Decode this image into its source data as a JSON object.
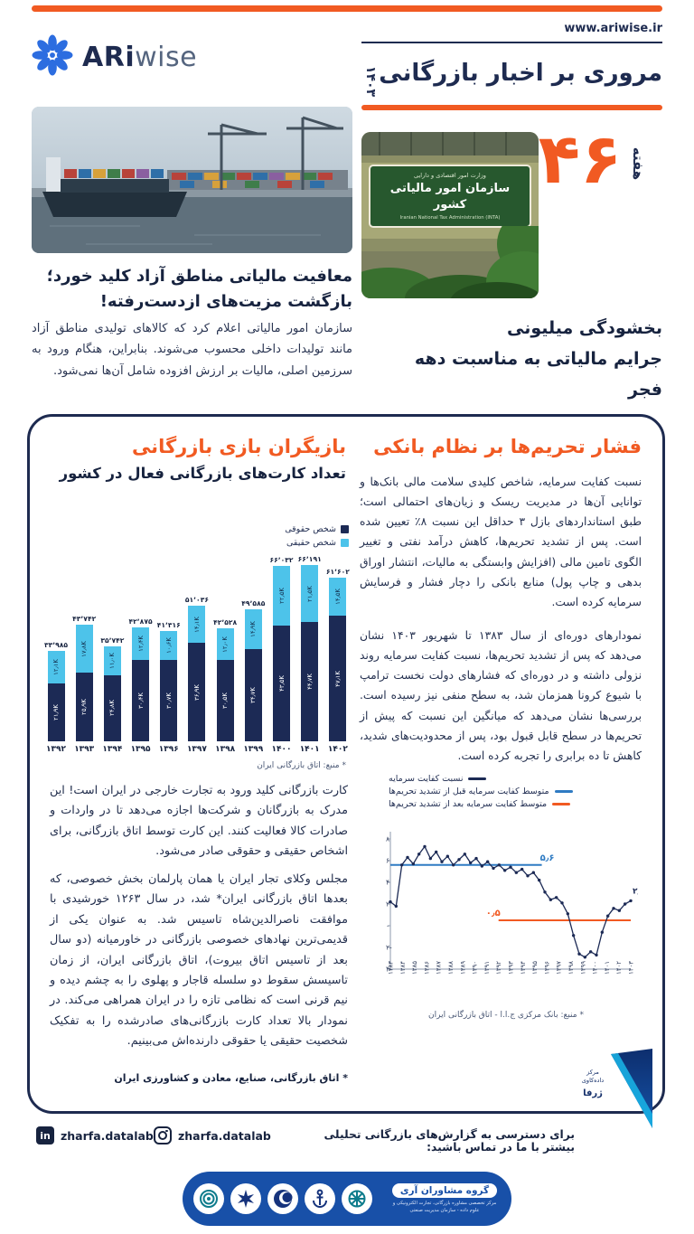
{
  "site": {
    "url": "www.ariwise.ir"
  },
  "brand": {
    "name_bold": "ARi",
    "name_light": "wise"
  },
  "header": {
    "title": "مروری بر اخبار بازرگانی",
    "year": "۱۴۰۳",
    "week_label": "هفته",
    "week_number": "۴۶"
  },
  "news_left": {
    "headline1": "معافیت مالیاتی مناطق آزاد کلید خورد؛",
    "headline2": "بازگشت مزیت‌های ازدست‌رفته!",
    "body": "سازمان امور مالیاتی اعلام کرد که کالاهای تولیدی مناطق آزاد مانند تولیدات داخلی محسوب می‌شوند. بنابراین، هنگام ورود به سرزمین اصلی، مالیات بر ارزش افزوده شامل آن‌ها نمی‌شود."
  },
  "news_right": {
    "headline1": "بخشودگی میلیونی",
    "headline2": "جرایم مالیاتی به مناسبت دهه فجر",
    "sign_top": "وزارت امور اقتصادی و دارایی",
    "sign_main": "سازمان امور مالیاتی کشور",
    "sign_en": "Iranian National Tax Administration (INTA)"
  },
  "banking_article": {
    "title": "فشار تحریم‌ها بر نظام بانکی",
    "p1": "نسبت کفایت سرمایه، شاخص کلیدی سلامت مالی بانک‌ها و توانایی آن‌ها در مدیریت ریسک و زیان‌های احتمالی است؛ طبق استانداردهای بازل ۳ حداقل این نسبت ۸٪ تعیین شده است. پس از تشدید تحریم‌ها، کاهش درآمد نفتی و تغییر الگوی تامین مالی (افزایش وابستگی به مالیات، انتشار اوراق بدهی و چاپ پول) منابع بانکی را دچار فشار و فرسایش سرمایه کرده است.",
    "p2": "نمودارهای دوره‌ای از سال ۱۳۸۳ تا شهریور ۱۴۰۳ نشان می‌دهد که پس از تشدید تحریم‌ها، نسبت کفایت سرمایه روند نزولی داشته و در دوره‌ای که فشارهای دولت نخست ترامپ با شیوع کرونا همزمان شد، به سطح منفی نیز رسیده است. بررسی‌ها نشان می‌دهد که میانگین این نسبت که پیش از تحریم‌ها در سطح قابل قبول بود، پس از محدودیت‌های شدید، کاهش تا ده برابری را تجربه کرده است.",
    "source": "* منبع: بانک مرکزی ج.ا.ا - اتاق بازرگانی ایران"
  },
  "cards_article": {
    "title": "بازیگران بازی بازرگانی",
    "subtitle": "تعداد کارت‌های بازرگانی فعال در کشور",
    "source": "* منبع: اتاق بازرگانی ایران",
    "p1": "کارت بازرگانی کلید ورود به تجارت خارجی در ایران است! این مدرک به بازرگانان و شرکت‌ها اجازه می‌دهد تا در واردات و صادرات کالا فعالیت کنند. این کارت توسط اتاق بازرگانی، برای اشخاص حقیقی و حقوقی صادر می‌شود.",
    "p2": "مجلس وکلای تجار ایران یا همان پارلمان بخش خصوصی، که بعدها اتاق بازرگانی ایران* شد، در سال ۱۲۶۳ خورشیدی با موافقت ناصرالدین‌شاه تاسیس شد. به عنوان یکی از قدیمی‌ترین نهادهای خصوصی بازرگانی در خاورمیانه (دو سال بعد از تاسیس اتاق بیروت)، اتاق بازرگانی ایران، از زمان تاسیسش سقوط دو سلسله قاجار و پهلوی را به چشم دیده و نیم قرنی است که نظامی تازه را در ایران همراهی می‌کند. در نمودار بالا تعداد کارت بازرگانی‌های صادرشده را به تفکیک شخصیت حقیقی یا حقوقی دارنده‌اش می‌بینیم.",
    "footnote": "* اتاق بازرگانی، صنایع، معادن و کشاورزی ایران"
  },
  "chart_data": [
    {
      "type": "bar",
      "stacked": true,
      "title": "تعداد کارت‌های بازرگانی فعال در کشور",
      "categories": [
        "۱۳۹۲",
        "۱۳۹۳",
        "۱۳۹۴",
        "۱۳۹۵",
        "۱۳۹۶",
        "۱۳۹۷",
        "۱۳۹۸",
        "۱۳۹۹",
        "۱۴۰۰",
        "۱۴۰۱",
        "۱۴۰۲"
      ],
      "unit": "هزار کارت",
      "series": [
        {
          "name": "شخص حقوقی",
          "color": "#1c2a55",
          "values": [
            21.9,
            25.9,
            24.8,
            30.4,
            30.7,
            36.9,
            30.5,
            34.7,
            43.5,
            44.7,
            47.1
          ],
          "labels": [
            "۲۱٫۹K",
            "۲۵٫۹K",
            "۲۴٫۸K",
            "۳۰٫۴K",
            "۳۰٫۷K",
            "۳۶٫۹K",
            "۳۰٫۵K",
            "۳۴٫۷K",
            "۴۳٫۵K",
            "۴۴٫۷K",
            "۴۷٫۱K"
          ]
        },
        {
          "name": "شخص حقیقی",
          "color": "#4dc3ea",
          "values": [
            12.1,
            17.8,
            11.0,
            12.4,
            10.6,
            14.1,
            12.0,
            14.9,
            22.5,
            21.5,
            14.5
          ],
          "labels": [
            "۱۲٫۱K",
            "۱۷٫۸K",
            "۱۱٫۰K",
            "۱۲٫۴K",
            "۱۰٫۶K",
            "۱۴٫۱K",
            "۱۲٫۰K",
            "۱۴٫۹K",
            "۲۲٫۵K",
            "۲۱٫۵K",
            "۱۴٫۵K"
          ]
        }
      ],
      "totals": [
        33985,
        43742,
        35742,
        42875,
        41316,
        51036,
        42528,
        49585,
        66032,
        66191,
        61602
      ],
      "totals_labels": [
        "۳۳٬۹۸۵",
        "۴۳٬۷۴۲",
        "۳۵٬۷۴۲",
        "۴۲٬۸۷۵",
        "۴۱٬۳۱۶",
        "۵۱٬۰۳۶",
        "۴۲٬۵۲۸",
        "۴۹٬۵۸۵",
        "۶۶٬۰۳۲",
        "۶۶٬۱۹۱",
        "۶۱٬۶۰۲"
      ],
      "legend_position": "top-right"
    },
    {
      "type": "line",
      "title": "نسبت کفایت سرمایه نظام بانکی",
      "ylim": [
        -4,
        8
      ],
      "y_ticks": [
        {
          "value": 8,
          "label": "۸"
        },
        {
          "value": 6,
          "label": "۶"
        },
        {
          "value": 4,
          "label": "۴"
        },
        {
          "value": 2,
          "label": "۲"
        },
        {
          "value": 0,
          "label": "۰"
        },
        {
          "value": -2,
          "label": "-۲"
        },
        {
          "value": -4,
          "label": "-۴"
        }
      ],
      "x_labels": [
        "۱۳۸۳",
        "۱۳۸۴",
        "۱۳۸۵",
        "۱۳۸۶",
        "۱۳۸۷",
        "۱۳۸۸",
        "۱۳۸۹",
        "۱۳۹۰",
        "۱۳۹۱",
        "۱۳۹۲",
        "۱۳۹۳",
        "۱۳۹۴",
        "۱۳۹۵",
        "۱۳۹۶",
        "۱۳۹۷",
        "۱۳۹۸",
        "۱۳۹۹",
        "۱۴۰۰",
        "۱۴۰۱",
        "۱۴۰۲",
        "۱۴۰۳"
      ],
      "legend": [
        {
          "label": "نسبت کفایت سرمایه",
          "color": "#1c2a55"
        },
        {
          "label": "متوسط کفایت سرمایه قبل از تشدید تحریم‌ها",
          "color": "#2f7bc3"
        },
        {
          "label": "متوسط کفایت سرمایه بعد از تشدید تحریم‌ها",
          "color": "#f15a22"
        }
      ],
      "values": [
        2.2,
        1.8,
        5.6,
        6.3,
        5.7,
        6.6,
        7.3,
        6.2,
        6.8,
        5.9,
        6.4,
        5.6,
        6.1,
        6.6,
        5.8,
        6.2,
        5.5,
        5.9,
        5.3,
        5.6,
        5.1,
        5.4,
        4.9,
        5.2,
        4.6,
        4.9,
        4.2,
        3.1,
        2.4,
        2.6,
        2.1,
        1.1,
        -0.9,
        -2.6,
        -2.9,
        -2.4,
        -2.7,
        -0.6,
        0.9,
        1.6,
        1.4,
        2.0,
        2.3
      ],
      "avg_before": {
        "value": 5.6,
        "label": "۵٫۶",
        "x0": 0,
        "x1": 0.63,
        "color": "#2f7bc3"
      },
      "avg_after": {
        "value": 0.5,
        "label": "۰٫۵",
        "x0": 0.45,
        "x1": 1,
        "color": "#f15a22"
      },
      "end_label": "۲٫۳",
      "grid": false,
      "line_color": "#1c2a55"
    }
  ],
  "footer": {
    "contact": "برای دسترسی به گزارش‌های بازرگانی تحلیلی بیشتر با ما در تماس باشید:",
    "linkedin": "zharfa.datalab",
    "instagram": "zharfa.datalab",
    "linkedin_icon_glyph": "in",
    "zharfa_line1": "مرکز داده‌کاوی",
    "zharfa_line2": "ژرفا",
    "consultants_name": "گروه مشاوران آری",
    "consultants_sub": "مرکز تخصصی مشاوره بازرگانی، تجارت الکترونیکی و علوم داده - سازمان مدیریت صنعتی"
  },
  "colors": {
    "accent_orange": "#f15a22",
    "navy": "#1c2a55",
    "light_blue": "#4dc3ea",
    "avg_blue": "#2f7bc3",
    "capsule_blue": "#1850a8"
  }
}
